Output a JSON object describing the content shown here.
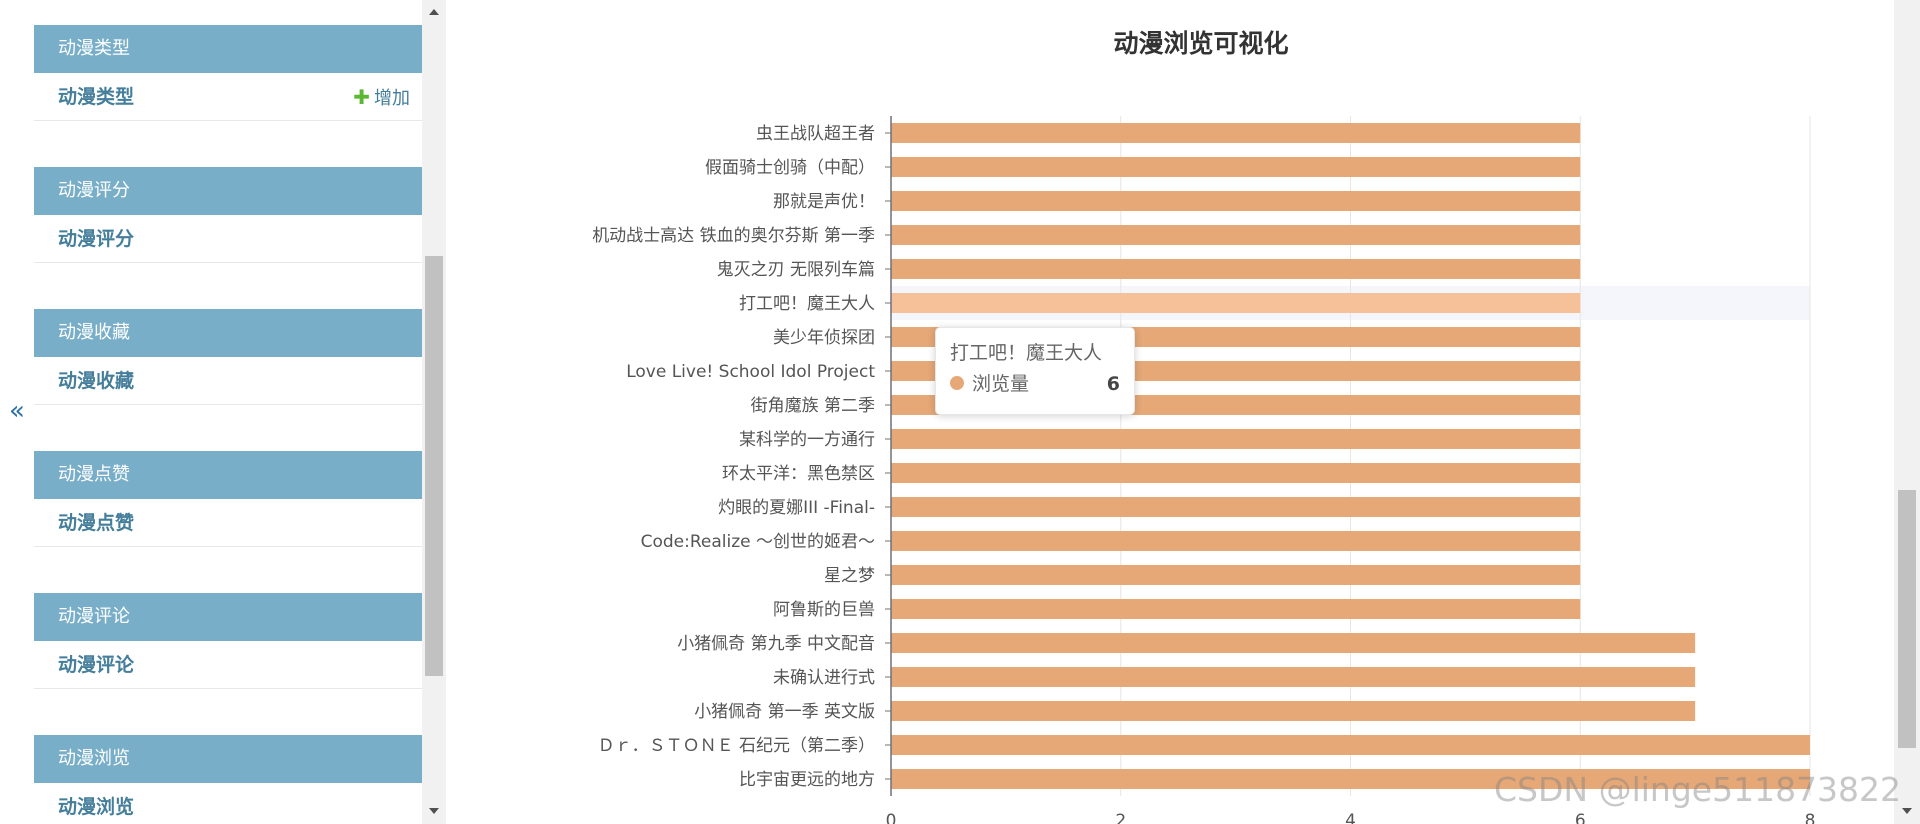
{
  "sidebar": {
    "collapse_glyph": "«",
    "modules": [
      {
        "header": "动漫类型",
        "link": "动漫类型",
        "add_label": "增加"
      },
      {
        "header": "动漫评分",
        "link": "动漫评分"
      },
      {
        "header": "动漫收藏",
        "link": "动漫收藏"
      },
      {
        "header": "动漫点赞",
        "link": "动漫点赞"
      },
      {
        "header": "动漫评论",
        "link": "动漫评论"
      },
      {
        "header": "动漫浏览",
        "link": "动漫浏览"
      }
    ]
  },
  "colors": {
    "module_header": "#79aec8",
    "link": "#447e9b",
    "add_plus": "#5cb833",
    "bar": "#e6a877",
    "bar_highlight": "#f6c199"
  },
  "chart_data": {
    "type": "bar",
    "orientation": "horizontal",
    "title": "动漫浏览可视化",
    "xlabel": "",
    "ylabel": "",
    "xlim": [
      0,
      8
    ],
    "x_ticks": [
      0,
      2,
      4,
      6,
      8
    ],
    "grid": true,
    "categories": [
      "虫王战队超王者",
      "假面骑士创骑（中配）",
      "那就是声优！",
      "机动战士高达 铁血的奥尔芬斯 第一季",
      "鬼灭之刃 无限列车篇",
      "打工吧！魔王大人",
      "美少年侦探团",
      "Love Live! School Idol Project",
      "街角魔族 第二季",
      "某科学的一方通行",
      "环太平洋：黑色禁区",
      "灼眼的夏娜III -Final-",
      "Code:Realize ～创世的姬君～",
      "星之梦",
      "阿鲁斯的巨兽",
      "小猪佩奇 第九季 中文配音",
      "未确认进行式",
      "小猪佩奇 第一季 英文版",
      "Ｄｒ．ＳＴＯＮＥ 石纪元（第二季）",
      "比宇宙更远的地方"
    ],
    "series": [
      {
        "name": "浏览量",
        "values": [
          6,
          6,
          6,
          6,
          6,
          6,
          6,
          6,
          6,
          6,
          6,
          6,
          6,
          6,
          6,
          7,
          7,
          7,
          8,
          8
        ]
      }
    ],
    "highlighted_index": 5
  },
  "tooltip": {
    "title": "打工吧！魔王大人",
    "series_name": "浏览量",
    "value": "6"
  },
  "watermark": "CSDN @linge511873822"
}
